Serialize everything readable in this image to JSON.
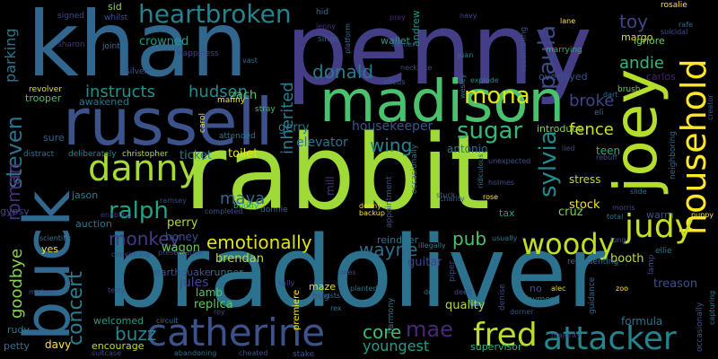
{
  "words": [
    {
      "text": "rabbit",
      "color": "#a0da39"
    },
    {
      "text": "penny",
      "color": "#433e85"
    },
    {
      "text": "bradoliver",
      "color": "#2c728e"
    },
    {
      "text": "khan",
      "color": "#31668e"
    },
    {
      "text": "russell",
      "color": "#3b528b"
    },
    {
      "text": "madison",
      "color": "#4ac16d"
    },
    {
      "text": "buck",
      "color": "#31688e"
    },
    {
      "text": "joey",
      "color": "#b5de2b"
    },
    {
      "text": "household",
      "color": "#fde725"
    },
    {
      "text": "danny",
      "color": "#a5db36"
    },
    {
      "text": "catherine",
      "color": "#3b528b"
    },
    {
      "text": "attacker",
      "color": "#25838e"
    },
    {
      "text": "fred",
      "color": "#b8de29"
    },
    {
      "text": "judy",
      "color": "#c8e020"
    },
    {
      "text": "woody",
      "color": "#c2df23"
    },
    {
      "text": "heartbroken",
      "color": "#26828e"
    },
    {
      "text": "mona",
      "color": "#dde318"
    },
    {
      "text": "ralph",
      "color": "#20a486"
    },
    {
      "text": "sugar",
      "color": "#35b779"
    },
    {
      "text": "paula",
      "color": "#3e4989"
    },
    {
      "text": "sylvia",
      "color": "#238a8d"
    },
    {
      "text": "emotionally",
      "color": "#dde318"
    },
    {
      "text": "donald",
      "color": "#2a788e"
    },
    {
      "text": "monkey",
      "color": "#443a83"
    },
    {
      "text": "instructs",
      "color": "#21918c"
    },
    {
      "text": "hudson",
      "color": "#228c8d"
    },
    {
      "text": "steven",
      "color": "#2c728e"
    },
    {
      "text": "roman",
      "color": "#462f7e"
    },
    {
      "text": "concert",
      "color": "#287d8e"
    },
    {
      "text": "goodbye",
      "color": "#84d44b"
    },
    {
      "text": "buzz",
      "color": "#25848e"
    },
    {
      "text": "mae",
      "color": "#482878"
    },
    {
      "text": "core",
      "color": "#3fbc73"
    },
    {
      "text": "wayne",
      "color": "#2f6c8e"
    },
    {
      "text": "pub",
      "color": "#4ec36b"
    },
    {
      "text": "maya",
      "color": "#31678e"
    },
    {
      "text": "wing",
      "color": "#25848e"
    },
    {
      "text": "inherited",
      "color": "#27808e"
    },
    {
      "text": "parking",
      "color": "#2a788e"
    },
    {
      "text": "toy",
      "color": "#404688"
    },
    {
      "text": "andie",
      "color": "#35b779"
    },
    {
      "text": "broke",
      "color": "#414487"
    },
    {
      "text": "fence",
      "color": "#d0e11c"
    },
    {
      "text": "elevator",
      "color": "#2a768e"
    },
    {
      "text": "housekeeper",
      "color": "#39568c"
    },
    {
      "text": "youngest",
      "color": "#1f9e89"
    },
    {
      "text": "supervisor",
      "color": "#2db27d"
    },
    {
      "text": "crowned",
      "color": "#1f9a8a"
    },
    {
      "text": "ticket",
      "color": "#27808e"
    },
    {
      "text": "toilet",
      "color": "#e7e419"
    },
    {
      "text": "gerry",
      "color": "#2a788e"
    },
    {
      "text": "zach",
      "color": "#5ec962"
    },
    {
      "text": "antonio",
      "color": "#2a768e"
    },
    {
      "text": "mill",
      "color": "#46337e"
    },
    {
      "text": "brendan",
      "color": "#bddf26"
    },
    {
      "text": "perry",
      "color": "#b0dd2f"
    },
    {
      "text": "honey",
      "color": "#3b528b"
    },
    {
      "text": "wagon",
      "color": "#6ccd5a"
    },
    {
      "text": "replica",
      "color": "#5ec962"
    },
    {
      "text": "jules",
      "color": "#3e4989"
    },
    {
      "text": "lamb",
      "color": "#52c569"
    },
    {
      "text": "guitar",
      "color": "#404688"
    },
    {
      "text": "quality",
      "color": "#b0dd2f"
    },
    {
      "text": "booth",
      "color": "#c0df25"
    },
    {
      "text": "treason",
      "color": "#3c508b"
    },
    {
      "text": "formula",
      "color": "#2c728e"
    },
    {
      "text": "stock",
      "color": "#f1e51d"
    },
    {
      "text": "stress",
      "color": "#bddf26"
    },
    {
      "text": "cruz",
      "color": "#75d054"
    },
    {
      "text": "warm",
      "color": "#3a538b"
    },
    {
      "text": "teen",
      "color": "#29af7f"
    },
    {
      "text": "wallet",
      "color": "#1f9e89"
    },
    {
      "text": "margo",
      "color": "#d8e219"
    },
    {
      "text": "ignore",
      "color": "#6ccd5a"
    },
    {
      "text": "carlos",
      "color": "#481f70"
    },
    {
      "text": "overjoyed",
      "color": "#3b528b"
    },
    {
      "text": "introduce",
      "color": "#7fd34e"
    },
    {
      "text": "tax",
      "color": "#1fa187"
    },
    {
      "text": "jason",
      "color": "#26828e"
    },
    {
      "text": "auction",
      "color": "#2a788e"
    },
    {
      "text": "encourage",
      "color": "#c2df23"
    },
    {
      "text": "davy",
      "color": "#fde725"
    },
    {
      "text": "petty",
      "color": "#2c728e"
    },
    {
      "text": "rudy",
      "color": "#2a788e"
    },
    {
      "text": "welcomed",
      "color": "#1fa088"
    },
    {
      "text": "earthquake",
      "color": "#3b528b"
    },
    {
      "text": "runner",
      "color": "#287c8e"
    },
    {
      "text": "yes",
      "color": "#fde725"
    },
    {
      "text": "gypsy",
      "color": "#3f4788"
    },
    {
      "text": "sure",
      "color": "#34618d"
    },
    {
      "text": "trooper",
      "color": "#4ac16d"
    },
    {
      "text": "awakened",
      "color": "#29798e"
    },
    {
      "text": "revolver",
      "color": "#dde318"
    },
    {
      "text": "signed",
      "color": "#3d4d8a"
    },
    {
      "text": "whilst",
      "color": "#39568c"
    },
    {
      "text": "sid",
      "color": "#8bd646"
    },
    {
      "text": "joint",
      "color": "#2b758e"
    },
    {
      "text": "sharon",
      "color": "#46337e"
    },
    {
      "text": "silver",
      "color": "#3b528b"
    },
    {
      "text": "happiness",
      "color": "#3f4889"
    },
    {
      "text": "deliberately",
      "color": "#24878e"
    },
    {
      "text": "christopher",
      "color": "#b5de2b"
    },
    {
      "text": "distract",
      "color": "#2c728e"
    },
    {
      "text": "enabling",
      "color": "#443983"
    },
    {
      "text": "ramsey",
      "color": "#3f4788"
    },
    {
      "text": "scientific",
      "color": "#2a788e"
    },
    {
      "text": "convincing",
      "color": "#3e4989"
    },
    {
      "text": "presentation",
      "color": "#3e4989"
    },
    {
      "text": "completed",
      "color": "#3b528b"
    },
    {
      "text": "buddy",
      "color": "#2db27d"
    },
    {
      "text": "donnie",
      "color": "#31678e"
    },
    {
      "text": "carol",
      "color": "#e7e419"
    },
    {
      "text": "attended",
      "color": "#2a788e"
    },
    {
      "text": "manny",
      "color": "#fde725"
    },
    {
      "text": "stray",
      "color": "#3fbc73"
    },
    {
      "text": "vast",
      "color": "#2c728e"
    },
    {
      "text": "jenny",
      "color": "#46307e"
    },
    {
      "text": "hid",
      "color": "#2c728e"
    },
    {
      "text": "sings",
      "color": "#355f8d"
    },
    {
      "text": "platform",
      "color": "#2f6c8e"
    },
    {
      "text": "andrew",
      "color": "#21918c"
    },
    {
      "text": "prey",
      "color": "#482576"
    },
    {
      "text": "tanner",
      "color": "#3b528b"
    },
    {
      "text": "juan",
      "color": "#2a788e"
    },
    {
      "text": "necklace",
      "color": "#404688"
    },
    {
      "text": "circus",
      "color": "#34618d"
    },
    {
      "text": "explode",
      "color": "#26828e"
    },
    {
      "text": "wesley",
      "color": "#2a788e"
    },
    {
      "text": "resembling",
      "color": "#3b528b"
    },
    {
      "text": "marrying",
      "color": "#2db27d"
    },
    {
      "text": "navy",
      "color": "#404688"
    },
    {
      "text": "lane",
      "color": "#fde725"
    },
    {
      "text": "rosalie",
      "color": "#fde725"
    },
    {
      "text": "suicidal",
      "color": "#3b528b"
    },
    {
      "text": "rafe",
      "color": "#31688e"
    },
    {
      "text": "brush",
      "color": "#6ccd5a"
    },
    {
      "text": "dart",
      "color": "#2c728e"
    },
    {
      "text": "eli",
      "color": "#31688e"
    },
    {
      "text": "creator",
      "color": "#3b528b"
    },
    {
      "text": "neighboring",
      "color": "#31688e"
    },
    {
      "text": "lied",
      "color": "#3e4989"
    },
    {
      "text": "rebuff",
      "color": "#3b528b"
    },
    {
      "text": "slide",
      "color": "#2c728e"
    },
    {
      "text": "morris",
      "color": "#404688"
    },
    {
      "text": "total",
      "color": "#2a788e"
    },
    {
      "text": "puppy",
      "color": "#fde725"
    },
    {
      "text": "lung",
      "color": "#3b528b"
    },
    {
      "text": "ellie",
      "color": "#2a788e"
    },
    {
      "text": "lamp",
      "color": "#3e4989"
    },
    {
      "text": "capturing",
      "color": "#2c728e"
    },
    {
      "text": "occasionally",
      "color": "#3b528b"
    },
    {
      "text": "zoo",
      "color": "#fde725"
    },
    {
      "text": "alec",
      "color": "#dde318"
    },
    {
      "text": "representing",
      "color": "#2c728e"
    },
    {
      "text": "anymore",
      "color": "#2a788e"
    },
    {
      "text": "guidance",
      "color": "#31688e"
    },
    {
      "text": "dorner",
      "color": "#3b528b"
    },
    {
      "text": "majority",
      "color": "#3e4989"
    },
    {
      "text": "no",
      "color": "#3b528b"
    },
    {
      "text": "denise",
      "color": "#404688"
    },
    {
      "text": "piper",
      "color": "#3e4989"
    },
    {
      "text": "deed",
      "color": "#3b528b"
    },
    {
      "text": "dee",
      "color": "#2c728e"
    },
    {
      "text": "harmony",
      "color": "#2a788e"
    },
    {
      "text": "owes",
      "color": "#3e4989"
    },
    {
      "text": "exists",
      "color": "#2c728e"
    },
    {
      "text": "rex",
      "color": "#2a788e"
    },
    {
      "text": "stake",
      "color": "#3b528b"
    },
    {
      "text": "premiere",
      "color": "#fde725"
    },
    {
      "text": "planted",
      "color": "#2a788e"
    },
    {
      "text": "sally",
      "color": "#3e4989"
    },
    {
      "text": "shots",
      "color": "#2c728e"
    },
    {
      "text": "maze",
      "color": "#dde318"
    },
    {
      "text": "hug",
      "color": "#3b528b"
    },
    {
      "text": "terry",
      "color": "#3e4989"
    },
    {
      "text": "mickey",
      "color": "#3b528b"
    },
    {
      "text": "suitcase",
      "color": "#3e4989"
    },
    {
      "text": "abandoning",
      "color": "#2c728e"
    },
    {
      "text": "cheated",
      "color": "#3b528b"
    },
    {
      "text": "circuit",
      "color": "#2c728e"
    },
    {
      "text": "roy",
      "color": "#3e4989"
    },
    {
      "text": "reindeer",
      "color": "#2c728e"
    },
    {
      "text": "denny",
      "color": "#fde725"
    },
    {
      "text": "backup",
      "color": "#fde725"
    },
    {
      "text": "illegally",
      "color": "#2a788e"
    },
    {
      "text": "appointment",
      "color": "#3b528b"
    },
    {
      "text": "occasionally",
      "color": "#2c728e"
    },
    {
      "text": "charity",
      "color": "#3b528b"
    },
    {
      "text": "stuck",
      "color": "#31688e"
    },
    {
      "text": "rose",
      "color": "#fde725"
    },
    {
      "text": "holmes",
      "color": "#3e4989"
    },
    {
      "text": "unexpected",
      "color": "#3b528b"
    },
    {
      "text": "ridiculous",
      "color": "#2c728e"
    },
    {
      "text": "usually",
      "color": "#2a788e"
    }
  ]
}
